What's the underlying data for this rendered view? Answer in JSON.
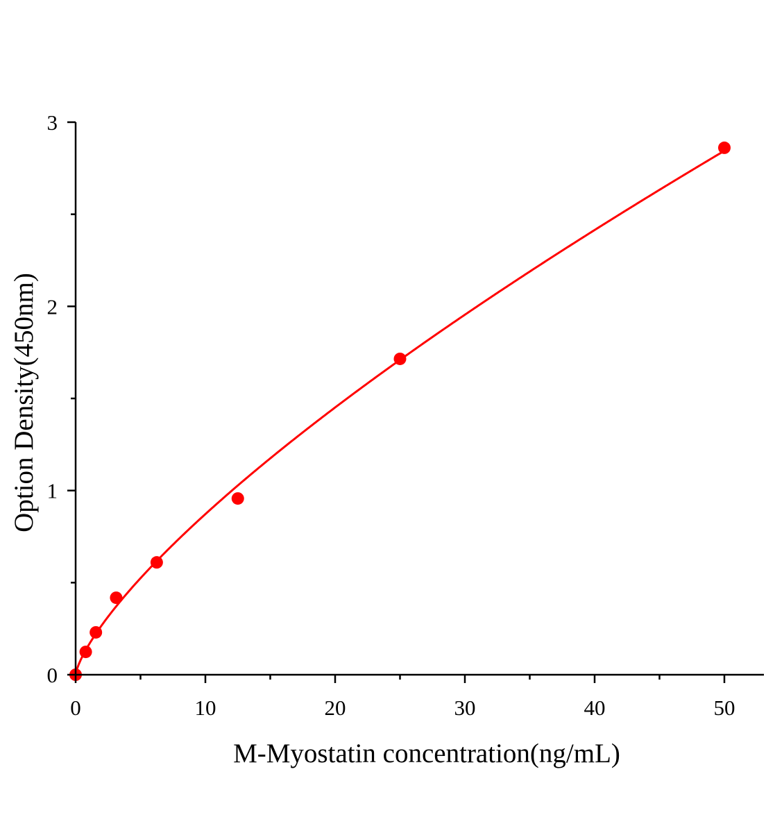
{
  "chart_data": {
    "type": "scatter",
    "title": "",
    "xlabel": "M-Myostatin concentration(ng/mL)",
    "ylabel": "Option Density(450nm)",
    "xlim": [
      0,
      52.6
    ],
    "ylim": [
      0,
      3
    ],
    "xticks": [
      "0",
      "10",
      "20",
      "30",
      "40",
      "50"
    ],
    "yticks": [
      "0",
      "1",
      "2",
      "3"
    ],
    "grid": false,
    "legend": "none",
    "series": [
      {
        "x": [
          0,
          0.78,
          1.56,
          3.125,
          6.25,
          12.5,
          25,
          50
        ],
        "y": [
          0.0,
          0.124,
          0.23,
          0.418,
          0.61,
          0.957,
          1.715,
          2.861
        ],
        "color": "#ff0000",
        "fit_line": true
      }
    ]
  }
}
